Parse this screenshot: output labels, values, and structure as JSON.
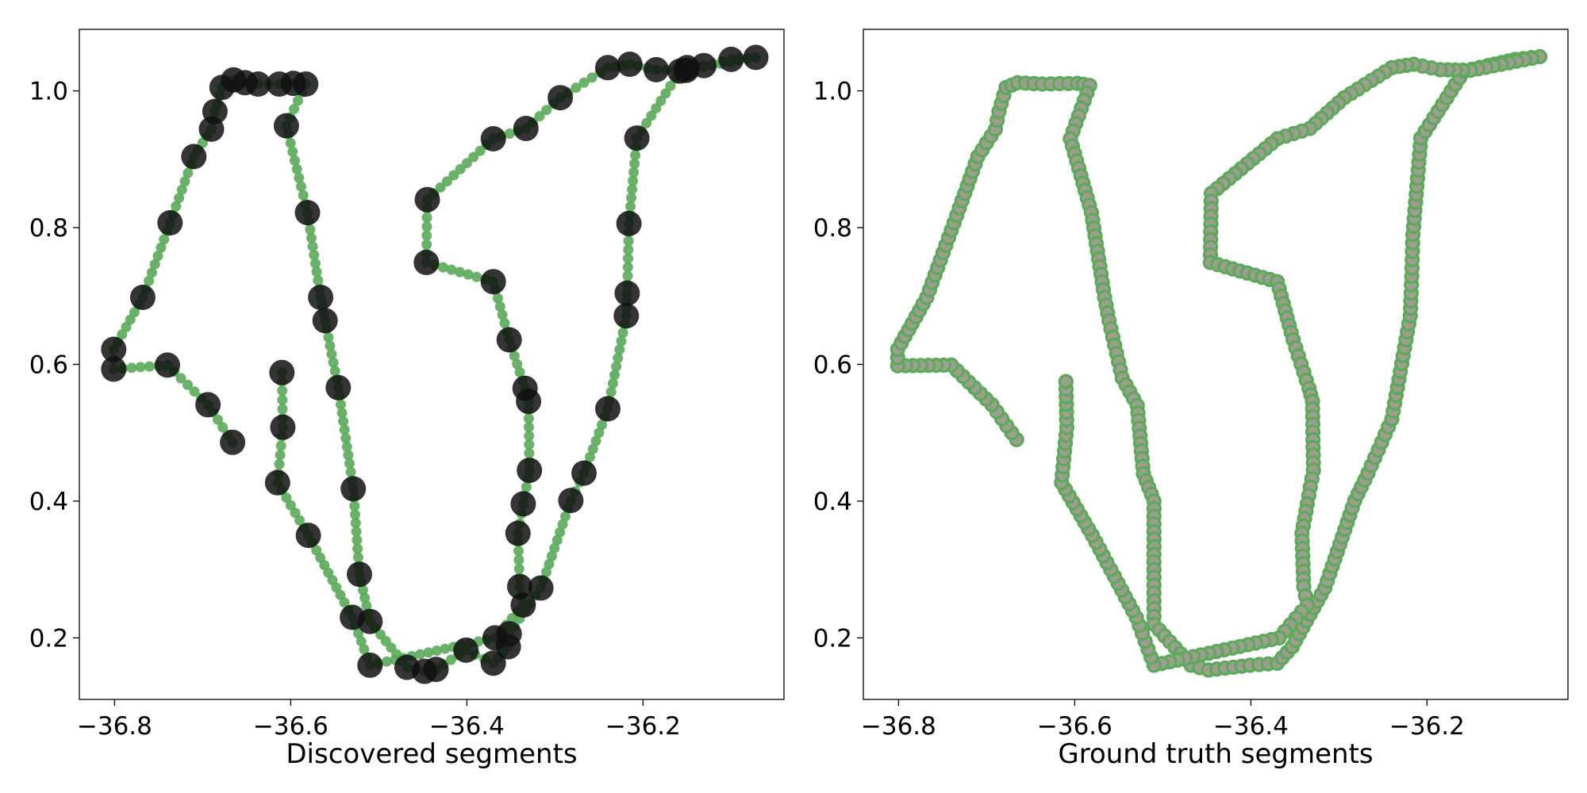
{
  "chart_data": [
    {
      "type": "scatter",
      "xlabel": "Discovered segments",
      "ylabel": "",
      "xlim": [
        -36.84,
        -36.04
      ],
      "ylim": [
        0.11,
        1.09
      ],
      "x_ticks": [
        -36.8,
        -36.6,
        -36.4,
        -36.2
      ],
      "x_tick_labels": [
        "−36.8",
        "−36.6",
        "−36.4",
        "−36.2"
      ],
      "y_ticks": [
        0.2,
        0.4,
        0.6,
        0.8,
        1.0
      ],
      "y_tick_labels": [
        "0.2",
        "0.4",
        "0.6",
        "0.8",
        "1.0"
      ],
      "grid": false,
      "series": [
        {
          "style": "track",
          "color": "#5aaa5a",
          "points": [
            [
              -36.666,
              0.486
            ],
            [
              -36.694,
              0.541
            ],
            [
              -36.74,
              0.599
            ],
            [
              -36.801,
              0.593
            ],
            [
              -36.801,
              0.622
            ],
            [
              -36.768,
              0.698
            ],
            [
              -36.737,
              0.807
            ],
            [
              -36.71,
              0.904
            ],
            [
              -36.69,
              0.944
            ],
            [
              -36.686,
              0.97
            ],
            [
              -36.678,
              1.005
            ],
            [
              -36.665,
              1.016
            ],
            [
              -36.652,
              1.012
            ],
            [
              -36.637,
              1.01
            ],
            [
              -36.613,
              1.01
            ],
            [
              -36.597,
              1.011
            ],
            [
              -36.583,
              1.01
            ],
            [
              -36.605,
              0.949
            ],
            [
              -36.581,
              0.822
            ],
            [
              -36.566,
              0.698
            ],
            [
              -36.561,
              0.664
            ],
            [
              -36.546,
              0.566
            ],
            [
              -36.529,
              0.418
            ],
            [
              -36.522,
              0.293
            ],
            [
              -36.51,
              0.224
            ],
            [
              -36.468,
              0.157
            ],
            [
              -36.448,
              0.151
            ],
            [
              -36.435,
              0.154
            ],
            [
              -36.401,
              0.182
            ],
            [
              -36.37,
              0.163
            ],
            [
              -36.353,
              0.187
            ],
            [
              -36.352,
              0.206
            ],
            [
              -36.316,
              0.273
            ],
            [
              -36.282,
              0.401
            ],
            [
              -36.267,
              0.441
            ],
            [
              -36.24,
              0.535
            ],
            [
              -36.219,
              0.671
            ],
            [
              -36.218,
              0.704
            ],
            [
              -36.216,
              0.806
            ],
            [
              -36.207,
              0.931
            ],
            [
              -36.158,
              1.029
            ],
            [
              -36.15,
              1.034
            ],
            [
              -36.131,
              1.037
            ],
            [
              -36.1,
              1.046
            ],
            [
              -36.072,
              1.049
            ],
            [
              -36.151,
              1.03
            ],
            [
              -36.185,
              1.031
            ],
            [
              -36.215,
              1.039
            ],
            [
              -36.24,
              1.034
            ],
            [
              -36.294,
              0.99
            ],
            [
              -36.333,
              0.945
            ],
            [
              -36.37,
              0.93
            ],
            [
              -36.445,
              0.841
            ],
            [
              -36.446,
              0.749
            ],
            [
              -36.37,
              0.721
            ],
            [
              -36.352,
              0.636
            ],
            [
              -36.334,
              0.565
            ],
            [
              -36.33,
              0.546
            ],
            [
              -36.329,
              0.445
            ],
            [
              -36.336,
              0.396
            ],
            [
              -36.342,
              0.353
            ],
            [
              -36.34,
              0.275
            ],
            [
              -36.336,
              0.248
            ],
            [
              -36.368,
              0.2
            ],
            [
              -36.51,
              0.16
            ],
            [
              -36.53,
              0.23
            ],
            [
              -36.58,
              0.35
            ],
            [
              -36.615,
              0.427
            ],
            [
              -36.609,
              0.508
            ],
            [
              -36.61,
              0.588
            ]
          ]
        },
        {
          "style": "segment-points",
          "color": "#111111",
          "points": [
            [
              -36.666,
              0.486
            ],
            [
              -36.694,
              0.541
            ],
            [
              -36.74,
              0.599
            ],
            [
              -36.801,
              0.593
            ],
            [
              -36.801,
              0.622
            ],
            [
              -36.768,
              0.698
            ],
            [
              -36.737,
              0.807
            ],
            [
              -36.71,
              0.904
            ],
            [
              -36.69,
              0.944
            ],
            [
              -36.686,
              0.97
            ],
            [
              -36.678,
              1.005
            ],
            [
              -36.665,
              1.016
            ],
            [
              -36.652,
              1.012
            ],
            [
              -36.637,
              1.01
            ],
            [
              -36.613,
              1.01
            ],
            [
              -36.597,
              1.011
            ],
            [
              -36.583,
              1.01
            ],
            [
              -36.605,
              0.949
            ],
            [
              -36.581,
              0.822
            ],
            [
              -36.566,
              0.698
            ],
            [
              -36.561,
              0.664
            ],
            [
              -36.546,
              0.566
            ],
            [
              -36.529,
              0.418
            ],
            [
              -36.522,
              0.293
            ],
            [
              -36.51,
              0.224
            ],
            [
              -36.468,
              0.157
            ],
            [
              -36.448,
              0.151
            ],
            [
              -36.435,
              0.154
            ],
            [
              -36.401,
              0.182
            ],
            [
              -36.37,
              0.163
            ],
            [
              -36.353,
              0.187
            ],
            [
              -36.352,
              0.206
            ],
            [
              -36.316,
              0.273
            ],
            [
              -36.282,
              0.401
            ],
            [
              -36.267,
              0.441
            ],
            [
              -36.24,
              0.535
            ],
            [
              -36.219,
              0.671
            ],
            [
              -36.218,
              0.704
            ],
            [
              -36.216,
              0.806
            ],
            [
              -36.207,
              0.931
            ],
            [
              -36.158,
              1.029
            ],
            [
              -36.15,
              1.034
            ],
            [
              -36.131,
              1.037
            ],
            [
              -36.1,
              1.046
            ],
            [
              -36.072,
              1.049
            ],
            [
              -36.151,
              1.03
            ],
            [
              -36.185,
              1.031
            ],
            [
              -36.215,
              1.039
            ],
            [
              -36.24,
              1.034
            ],
            [
              -36.294,
              0.99
            ],
            [
              -36.333,
              0.945
            ],
            [
              -36.37,
              0.93
            ],
            [
              -36.445,
              0.841
            ],
            [
              -36.446,
              0.749
            ],
            [
              -36.37,
              0.721
            ],
            [
              -36.352,
              0.636
            ],
            [
              -36.334,
              0.565
            ],
            [
              -36.33,
              0.546
            ],
            [
              -36.329,
              0.445
            ],
            [
              -36.336,
              0.396
            ],
            [
              -36.342,
              0.353
            ],
            [
              -36.34,
              0.275
            ],
            [
              -36.336,
              0.248
            ],
            [
              -36.368,
              0.2
            ],
            [
              -36.51,
              0.16
            ],
            [
              -36.53,
              0.23
            ],
            [
              -36.58,
              0.35
            ],
            [
              -36.615,
              0.427
            ],
            [
              -36.609,
              0.508
            ],
            [
              -36.61,
              0.588
            ]
          ]
        }
      ]
    },
    {
      "type": "scatter",
      "xlabel": "Ground truth segments",
      "ylabel": "",
      "xlim": [
        -36.84,
        -36.04
      ],
      "ylim": [
        0.11,
        1.09
      ],
      "x_ticks": [
        -36.8,
        -36.6,
        -36.4,
        -36.2
      ],
      "x_tick_labels": [
        "−36.8",
        "−36.6",
        "−36.4",
        "−36.2"
      ],
      "y_ticks": [
        0.2,
        0.4,
        0.6,
        0.8,
        1.0
      ],
      "y_tick_labels": [
        "0.2",
        "0.4",
        "0.6",
        "0.8",
        "1.0"
      ],
      "grid": false,
      "series": [
        {
          "style": "ground-truth-points",
          "color": "#9e9e8e",
          "edge_color": "#5aaa5a",
          "points": [
            [
              -36.666,
              0.49
            ],
            [
              -36.694,
              0.541
            ],
            [
              -36.74,
              0.599
            ],
            [
              -36.801,
              0.598
            ],
            [
              -36.801,
              0.622
            ],
            [
              -36.768,
              0.698
            ],
            [
              -36.737,
              0.807
            ],
            [
              -36.71,
              0.904
            ],
            [
              -36.69,
              0.944
            ],
            [
              -36.686,
              0.97
            ],
            [
              -36.678,
              1.005
            ],
            [
              -36.665,
              1.012
            ],
            [
              -36.637,
              1.01
            ],
            [
              -36.597,
              1.011
            ],
            [
              -36.583,
              1.008
            ],
            [
              -36.605,
              0.93
            ],
            [
              -36.581,
              0.822
            ],
            [
              -36.566,
              0.698
            ],
            [
              -36.561,
              0.664
            ],
            [
              -36.546,
              0.58
            ],
            [
              -36.529,
              0.54
            ],
            [
              -36.522,
              0.44
            ],
            [
              -36.51,
              0.4
            ],
            [
              -36.51,
              0.3
            ],
            [
              -36.51,
              0.22
            ],
            [
              -36.468,
              0.16
            ],
            [
              -36.448,
              0.153
            ],
            [
              -36.401,
              0.16
            ],
            [
              -36.37,
              0.163
            ],
            [
              -36.353,
              0.187
            ],
            [
              -36.345,
              0.206
            ],
            [
              -36.316,
              0.273
            ],
            [
              -36.282,
              0.401
            ],
            [
              -36.267,
              0.441
            ],
            [
              -36.24,
              0.52
            ],
            [
              -36.219,
              0.671
            ],
            [
              -36.218,
              0.704
            ],
            [
              -36.216,
              0.79
            ],
            [
              -36.207,
              0.931
            ],
            [
              -36.158,
              1.029
            ],
            [
              -36.131,
              1.037
            ],
            [
              -36.1,
              1.046
            ],
            [
              -36.072,
              1.05
            ],
            [
              -36.151,
              1.03
            ],
            [
              -36.185,
              1.031
            ],
            [
              -36.215,
              1.039
            ],
            [
              -36.24,
              1.034
            ],
            [
              -36.294,
              0.99
            ],
            [
              -36.333,
              0.945
            ],
            [
              -36.37,
              0.93
            ],
            [
              -36.445,
              0.85
            ],
            [
              -36.446,
              0.749
            ],
            [
              -36.37,
              0.721
            ],
            [
              -36.352,
              0.636
            ],
            [
              -36.334,
              0.565
            ],
            [
              -36.33,
              0.546
            ],
            [
              -36.329,
              0.445
            ],
            [
              -36.336,
              0.396
            ],
            [
              -36.342,
              0.353
            ],
            [
              -36.34,
              0.275
            ],
            [
              -36.336,
              0.248
            ],
            [
              -36.368,
              0.2
            ],
            [
              -36.51,
              0.16
            ],
            [
              -36.53,
              0.23
            ],
            [
              -36.58,
              0.35
            ],
            [
              -36.615,
              0.427
            ],
            [
              -36.609,
              0.508
            ],
            [
              -36.61,
              0.575
            ]
          ]
        }
      ]
    }
  ]
}
